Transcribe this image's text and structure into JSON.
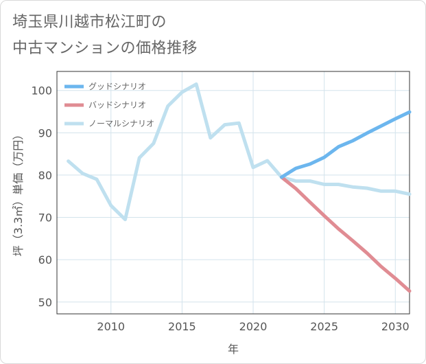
{
  "title_line1": "埼玉県川越市松江町の",
  "title_line2": "中古マンションの価格推移",
  "chart_data": {
    "type": "line",
    "xlabel": "年",
    "ylabel": "坪（3.3㎡）単価（万円）",
    "xlim": [
      2006.2,
      2031
    ],
    "ylim": [
      47.2,
      104.5
    ],
    "x_ticks": [
      2010,
      2015,
      2020,
      2025,
      2030
    ],
    "y_ticks": [
      50,
      60,
      70,
      80,
      90,
      100
    ],
    "grid": true,
    "legend_position": "top-left",
    "series": [
      {
        "name": "グッドシナリオ",
        "color": "#6cb6ee",
        "x": [
          2022,
          2023,
          2024,
          2025,
          2026,
          2027,
          2028,
          2029,
          2030,
          2031
        ],
        "y": [
          79.5,
          81.6,
          82.6,
          84.2,
          86.7,
          88.1,
          89.9,
          91.6,
          93.3,
          94.9
        ]
      },
      {
        "name": "バッドシナリオ",
        "color": "#e08c93",
        "x": [
          2022,
          2023,
          2024,
          2025,
          2026,
          2027,
          2028,
          2029,
          2030,
          2031
        ],
        "y": [
          79.5,
          76.8,
          73.6,
          70.4,
          67.3,
          64.5,
          61.6,
          58.4,
          55.6,
          52.6
        ]
      },
      {
        "name": "ノーマルシナリオ",
        "color": "#bfe0ef",
        "x": [
          2007,
          2008,
          2009,
          2010,
          2011,
          2012,
          2013,
          2014,
          2015,
          2016,
          2017,
          2018,
          2019,
          2020,
          2021,
          2022,
          2023,
          2024,
          2025,
          2026,
          2027,
          2028,
          2029,
          2030,
          2031
        ],
        "y": [
          83.3,
          80.4,
          79.0,
          72.8,
          69.5,
          84.1,
          87.5,
          96.3,
          99.6,
          101.5,
          88.8,
          91.9,
          92.3,
          81.8,
          83.4,
          79.5,
          78.6,
          78.6,
          77.8,
          77.8,
          77.2,
          76.9,
          76.2,
          76.2,
          75.5
        ]
      }
    ]
  }
}
